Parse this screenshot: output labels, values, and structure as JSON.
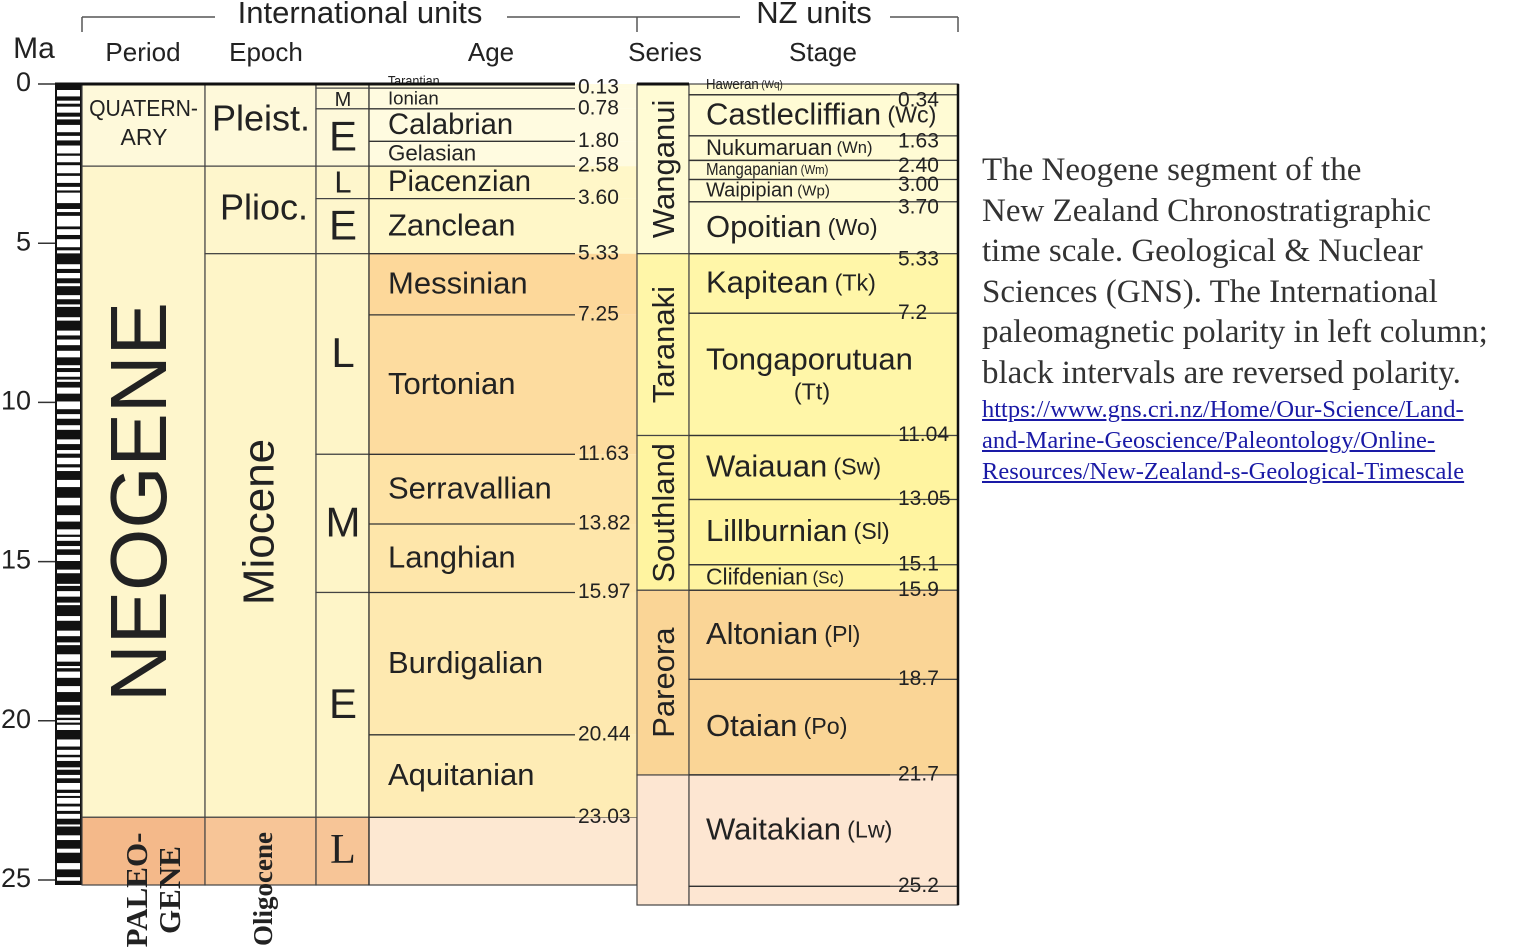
{
  "header": {
    "ma": "Ma",
    "international": "International units",
    "nz": "NZ units",
    "period": "Period",
    "epoch": "Epoch",
    "age": "Age",
    "series": "Series",
    "stage": "Stage"
  },
  "ma_ticks": [
    "0",
    "5",
    "10",
    "15",
    "20",
    "25"
  ],
  "periods": [
    [
      "QUATERN-",
      "ARY"
    ],
    [
      "NEOGENE"
    ],
    [
      "PALEO-",
      "GENE"
    ]
  ],
  "epochs": [
    "Pleist.",
    "Plioc.",
    "Miocene",
    "Oligocene"
  ],
  "subepochs": [
    "M",
    "E",
    "L",
    "E",
    "L",
    "M",
    "E",
    "L"
  ],
  "ages": [
    "Tarantian",
    "Ionian",
    "Calabrian",
    "Gelasian",
    "Piacenzian",
    "Zanclean",
    "Messinian",
    "Tortonian",
    "Serravallian",
    "Langhian",
    "Burdigalian",
    "Aquitanian"
  ],
  "age_boundaries": [
    "0.13",
    "0.78",
    "1.80",
    "2.58",
    "3.60",
    "5.33",
    "7.25",
    "11.63",
    "13.82",
    "15.97",
    "20.44",
    "23.03"
  ],
  "series": [
    "Wanganui",
    "Taranaki",
    "Southland",
    "Pareora"
  ],
  "stages": [
    {
      "name": "Haweran",
      "code": "(Wq)"
    },
    {
      "name": "Castlecliffian",
      "code": "(Wc)"
    },
    {
      "name": "Nukumaruan",
      "code": "(Wn)"
    },
    {
      "name": "Mangapanian",
      "code": "(Wm)"
    },
    {
      "name": "Waipipian",
      "code": "(Wp)"
    },
    {
      "name": "Opoitian",
      "code": "(Wo)"
    },
    {
      "name": "Kapitean",
      "code": "(Tk)"
    },
    {
      "name": "Tongaporutuan",
      "code": "(Tt)"
    },
    {
      "name": "Waiauan",
      "code": "(Sw)"
    },
    {
      "name": "Lillburnian",
      "code": "(Sl)"
    },
    {
      "name": "Clifdenian",
      "code": "(Sc)"
    },
    {
      "name": "Altonian",
      "code": "(Pl)"
    },
    {
      "name": "Otaian",
      "code": "(Po)"
    },
    {
      "name": "Waitakian",
      "code": "(Lw)"
    }
  ],
  "stage_boundaries": [
    "0.34",
    "1.63",
    "2.40",
    "3.00",
    "3.70",
    "5.33",
    "7.2",
    "11.04",
    "13.05",
    "15.1",
    "15.9",
    "18.7",
    "21.7",
    "25.2"
  ],
  "caption": [
    "The Neogene segment of the",
    "New Zealand Chronostratigraphic",
    "time scale. Geological & Nuclear",
    "Sciences (GNS).  The International",
    "paleomagnetic polarity in left column;",
    "black intervals are reversed polarity."
  ],
  "link": [
    "https://www.gns.cri.nz/Home/Our-Science/Land-",
    "and-Marine-Geoscience/Paleontology/Online-",
    "Resources/New-Zealand-s-Geological-Timescale"
  ]
}
